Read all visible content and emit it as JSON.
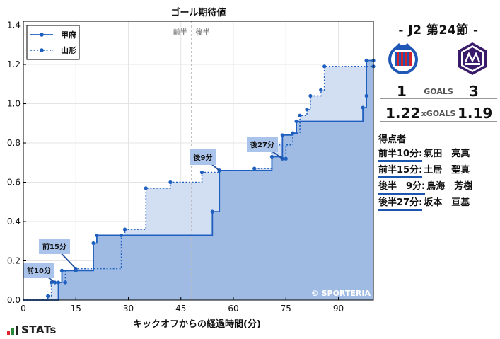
{
  "chart_data": {
    "type": "line",
    "title": "ゴール期待値",
    "xlabel": "キックオフからの経過時間(分)",
    "ylabel": "",
    "xlim": [
      0,
      100
    ],
    "ylim": [
      0,
      1.42
    ],
    "xticks": [
      0,
      15,
      30,
      45,
      60,
      75,
      90
    ],
    "yticks": [
      0.0,
      0.2,
      0.4,
      0.6,
      0.8,
      1.0,
      1.2,
      1.4
    ],
    "grid": true,
    "legend": "top-left",
    "halftime_x": 48,
    "halftime_labels": [
      "前半",
      "後半"
    ],
    "watermark": "© SPORTERIA",
    "series": [
      {
        "name": "甲府",
        "color": "#1f5fbf",
        "style": "solid",
        "points": [
          [
            0,
            0
          ],
          [
            10,
            0
          ],
          [
            10,
            0.09
          ],
          [
            11,
            0.09
          ],
          [
            11,
            0.15
          ],
          [
            15,
            0.15
          ],
          [
            20,
            0.15
          ],
          [
            20,
            0.29
          ],
          [
            21,
            0.29
          ],
          [
            21,
            0.33
          ],
          [
            54,
            0.33
          ],
          [
            54,
            0.45
          ],
          [
            56,
            0.45
          ],
          [
            56,
            0.66
          ],
          [
            71,
            0.66
          ],
          [
            71,
            0.73
          ],
          [
            74,
            0.73
          ],
          [
            74,
            0.84
          ],
          [
            77,
            0.84
          ],
          [
            77,
            0.85
          ],
          [
            78,
            0.85
          ],
          [
            78,
            0.91
          ],
          [
            97,
            0.91
          ],
          [
            97,
            0.98
          ],
          [
            98,
            0.98
          ],
          [
            98,
            1.04
          ],
          [
            98,
            1.22
          ],
          [
            100,
            1.22
          ]
        ],
        "markers": [
          [
            10,
            0.09
          ],
          [
            11,
            0.15
          ],
          [
            15,
            0.15
          ],
          [
            20,
            0.29
          ],
          [
            21,
            0.33
          ],
          [
            54,
            0.45
          ],
          [
            56,
            0.66
          ],
          [
            71,
            0.73
          ],
          [
            74,
            0.84
          ],
          [
            77,
            0.85
          ],
          [
            78,
            0.91
          ],
          [
            97,
            0.98
          ],
          [
            98,
            1.04
          ],
          [
            98,
            1.22
          ],
          [
            100,
            1.22
          ]
        ]
      },
      {
        "name": "山形",
        "color": "#1f5fbf",
        "style": "dotted",
        "points": [
          [
            0,
            0
          ],
          [
            7,
            0
          ],
          [
            7,
            0.02
          ],
          [
            8,
            0.02
          ],
          [
            8,
            0.09
          ],
          [
            9,
            0.09
          ],
          [
            9,
            0.09
          ],
          [
            12,
            0.09
          ],
          [
            12,
            0.15
          ],
          [
            15,
            0.15
          ],
          [
            15,
            0.16
          ],
          [
            28,
            0.16
          ],
          [
            28,
            0.33
          ],
          [
            29,
            0.33
          ],
          [
            29,
            0.36
          ],
          [
            35,
            0.36
          ],
          [
            35,
            0.57
          ],
          [
            42,
            0.57
          ],
          [
            42,
            0.6
          ],
          [
            51,
            0.6
          ],
          [
            51,
            0.65
          ],
          [
            56,
            0.65
          ],
          [
            56,
            0.66
          ],
          [
            66,
            0.66
          ],
          [
            66,
            0.67
          ],
          [
            71,
            0.67
          ],
          [
            71,
            0.79
          ],
          [
            74,
            0.79
          ],
          [
            74,
            0.72
          ],
          [
            74,
            0.72
          ],
          [
            75,
            0.72
          ],
          [
            75,
            0.79
          ],
          [
            77,
            0.79
          ],
          [
            77,
            0.85
          ],
          [
            79,
            0.85
          ],
          [
            79,
            0.94
          ],
          [
            81,
            0.94
          ],
          [
            81,
            0.97
          ],
          [
            82,
            0.97
          ],
          [
            82,
            1.04
          ],
          [
            85,
            1.04
          ],
          [
            85,
            1.07
          ],
          [
            86,
            1.07
          ],
          [
            86,
            1.19
          ],
          [
            100,
            1.19
          ]
        ],
        "markers": [
          [
            7,
            0.02
          ],
          [
            8,
            0.09
          ],
          [
            9,
            0.09
          ],
          [
            12,
            0.09
          ],
          [
            15,
            0.16
          ],
          [
            28,
            0.33
          ],
          [
            29,
            0.36
          ],
          [
            35,
            0.57
          ],
          [
            42,
            0.6
          ],
          [
            51,
            0.65
          ],
          [
            56,
            0.66
          ],
          [
            66,
            0.67
          ],
          [
            71,
            0.79
          ],
          [
            74,
            0.72
          ],
          [
            75,
            0.72
          ],
          [
            77,
            0.85
          ],
          [
            79,
            0.94
          ],
          [
            81,
            0.97
          ],
          [
            82,
            1.04
          ],
          [
            85,
            1.07
          ],
          [
            86,
            1.19
          ],
          [
            100,
            1.19
          ]
        ]
      }
    ],
    "annotations": [
      {
        "text": "前10分",
        "x": 9,
        "y": 0.09
      },
      {
        "text": "前15分",
        "x": 15,
        "y": 0.16
      },
      {
        "text": "後9分",
        "x": 56,
        "y": 0.66
      },
      {
        "text": "後27分",
        "x": 74,
        "y": 0.72
      }
    ]
  },
  "match": {
    "title": "-  J2 第24節  -",
    "home_goals": "1",
    "away_goals": "3",
    "goals_label": "GOALS",
    "home_xg": "1.22",
    "away_xg": "1.19",
    "xg_label": "xGOALS",
    "home_crest": "ventforet-kofu-crest-icon",
    "away_crest": "montedio-yamagata-crest-icon"
  },
  "scorers": {
    "title": "得点者",
    "items": [
      {
        "time": "前半10分:",
        "name": "氣田　亮真"
      },
      {
        "time": "前半15分:",
        "name": "土居　聖真"
      },
      {
        "time": "後半　9分:",
        "name": "鳥海　芳樹"
      },
      {
        "time": "後半27分:",
        "name": "坂本　亘基"
      }
    ]
  },
  "brand": {
    "text": "STATs"
  }
}
